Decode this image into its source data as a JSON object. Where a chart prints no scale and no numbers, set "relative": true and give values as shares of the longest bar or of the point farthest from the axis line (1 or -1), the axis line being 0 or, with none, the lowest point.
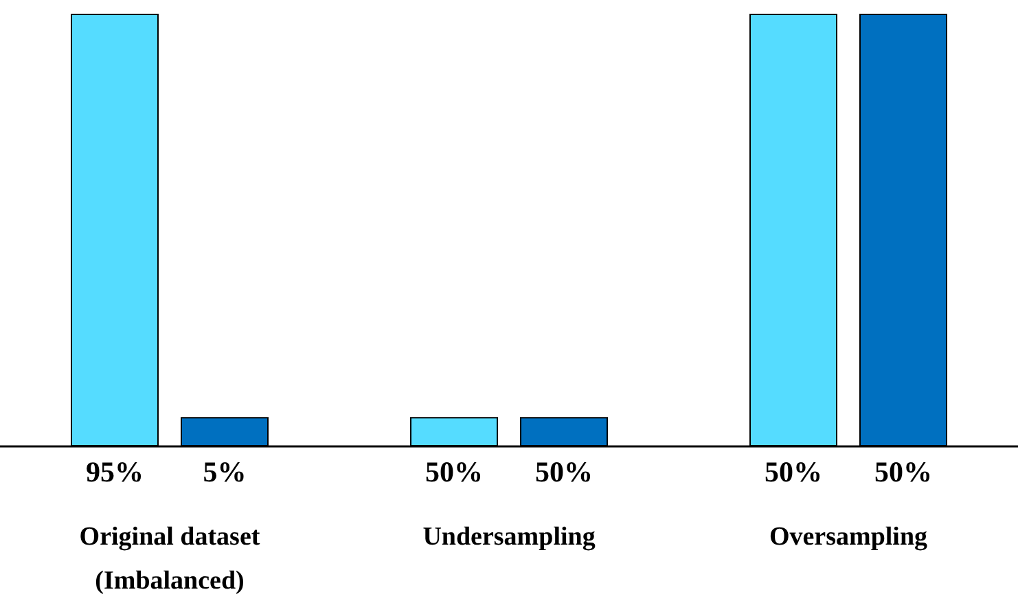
{
  "chart_data": {
    "type": "bar",
    "relative": true,
    "categories": [
      "Original dataset\n(Imbalanced)",
      "Undersampling",
      "Oversampling"
    ],
    "series": [
      {
        "color": "#55dcff",
        "values": [
          1,
          0.068,
          1
        ]
      },
      {
        "color": "#0070c0",
        "values": [
          0.068,
          0.068,
          1
        ]
      }
    ],
    "annotations": [
      "95%",
      "5%",
      "50%",
      "50%",
      "50%",
      "50%"
    ],
    "grid": false
  }
}
